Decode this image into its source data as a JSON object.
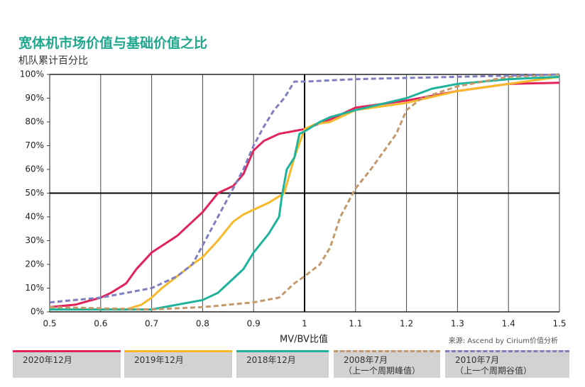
{
  "chart_data": {
    "type": "line",
    "title": "宽体机市场价值与基础价值之比",
    "subtitle": "机队累计百分比",
    "x_label": "MV/BV比值",
    "source": "来源:  Ascend by Cirium价值分析",
    "xlim": [
      0.5,
      1.5
    ],
    "xticks": [
      0.5,
      0.6,
      0.7,
      0.8,
      0.9,
      1,
      1.1,
      1.2,
      1.3,
      1.4,
      1.5
    ],
    "ylim": [
      0,
      100
    ],
    "yticks": [
      {
        "value": 0,
        "label": "0%"
      },
      {
        "value": 10,
        "label": "10%"
      },
      {
        "value": 20,
        "label": "20%"
      },
      {
        "value": 30,
        "label": "30%"
      },
      {
        "value": 40,
        "label": "40%"
      },
      {
        "value": 50,
        "label": "50%"
      },
      {
        "value": 60,
        "label": "60%"
      },
      {
        "value": 70,
        "label": "70%"
      },
      {
        "value": 80,
        "label": "80%"
      },
      {
        "value": 90,
        "label": "90%"
      },
      {
        "value": 100,
        "label": "100%"
      }
    ],
    "grid": "x",
    "reference_lines": {
      "x": 1,
      "y": 50
    },
    "legend": "bottom",
    "series": [
      {
        "name": "2020年12月",
        "color": "#e2245a",
        "dashed": false,
        "x": [
          0.5,
          0.55,
          0.6,
          0.62,
          0.65,
          0.67,
          0.7,
          0.75,
          0.8,
          0.83,
          0.86,
          0.88,
          0.9,
          0.92,
          0.95,
          1.0,
          1.05,
          1.1,
          1.2,
          1.3,
          1.4,
          1.5
        ],
        "values": [
          2,
          3,
          6,
          8,
          12,
          18,
          25,
          32,
          42,
          50,
          53,
          58,
          68,
          72,
          75,
          77,
          81,
          86,
          89,
          93,
          96,
          96.5
        ]
      },
      {
        "name": "2019年12月",
        "color": "#f7b92b",
        "dashed": false,
        "x": [
          0.5,
          0.65,
          0.68,
          0.7,
          0.72,
          0.75,
          0.78,
          0.8,
          0.83,
          0.86,
          0.88,
          0.9,
          0.93,
          0.96,
          0.98,
          1.0,
          1.02,
          1.05,
          1.1,
          1.2,
          1.3,
          1.4,
          1.5
        ],
        "values": [
          1,
          1,
          3,
          6,
          10,
          15,
          20,
          23,
          30,
          38,
          41,
          43,
          46,
          50,
          65,
          77,
          79,
          80,
          85,
          88,
          93,
          96,
          99
        ]
      },
      {
        "name": "2018年12月",
        "color": "#1fb39b",
        "dashed": false,
        "x": [
          0.5,
          0.7,
          0.75,
          0.8,
          0.83,
          0.86,
          0.88,
          0.9,
          0.93,
          0.95,
          0.955,
          0.965,
          0.98,
          0.99,
          1.0,
          1.03,
          1.05,
          1.1,
          1.2,
          1.25,
          1.3,
          1.4,
          1.5
        ],
        "values": [
          1,
          1,
          3,
          5,
          8,
          14,
          18,
          25,
          33,
          40,
          48,
          60,
          65,
          75,
          76,
          80,
          82,
          85,
          90,
          94,
          96,
          98,
          99
        ]
      },
      {
        "name": "2008年7月\n（上一个周期峰值）",
        "color": "#c49a6c",
        "dashed": true,
        "x": [
          0.5,
          0.7,
          0.8,
          0.9,
          0.95,
          0.98,
          1.0,
          1.03,
          1.05,
          1.07,
          1.1,
          1.13,
          1.15,
          1.18,
          1.2,
          1.23,
          1.3,
          1.4,
          1.5
        ],
        "values": [
          2,
          1,
          2,
          4,
          6,
          12,
          15,
          20,
          27,
          40,
          52,
          60,
          66,
          75,
          85,
          90,
          95,
          99,
          100
        ]
      },
      {
        "name": "2010年7月\n（上一个周期谷值）",
        "color": "#7f7fc0",
        "dashed": true,
        "x": [
          0.5,
          0.6,
          0.65,
          0.7,
          0.75,
          0.78,
          0.8,
          0.83,
          0.86,
          0.88,
          0.9,
          0.92,
          0.94,
          0.96,
          0.98,
          1.0,
          1.1,
          1.2,
          1.3,
          1.4,
          1.5
        ],
        "values": [
          4,
          6,
          8,
          10,
          15,
          20,
          28,
          40,
          52,
          60,
          70,
          78,
          85,
          90,
          97,
          97,
          98,
          98.5,
          99,
          99.5,
          100
        ]
      }
    ]
  }
}
